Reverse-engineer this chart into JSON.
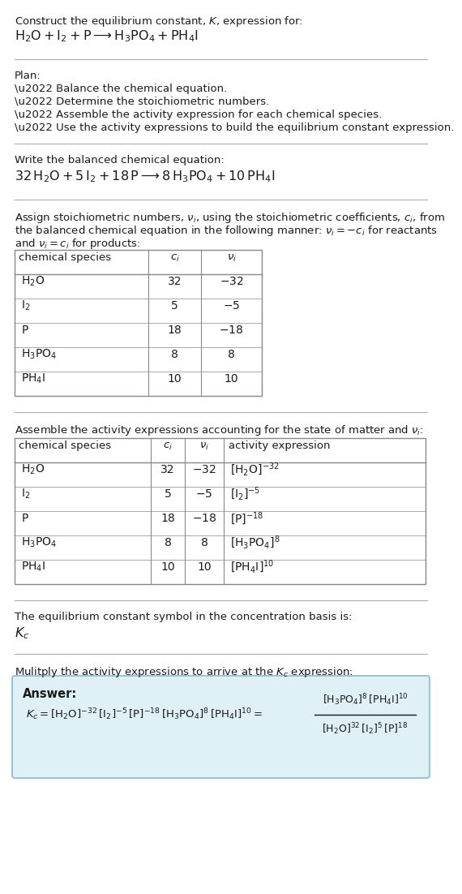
{
  "bg_color": "#ffffff",
  "text_color": "#1a1a1a",
  "table_border_color": "#888888",
  "answer_box_color": "#dff0f7",
  "answer_box_border": "#88bbcc",
  "line_color": "#aaaaaa",
  "sec1_line1": "Construct the equilibrium constant, $K$, expression for:",
  "sec1_line2_parts": [
    {
      "t": "$\\mathrm{H_2O + I_2 + P}$",
      "style": "normal"
    },
    {
      "t": " $\\longrightarrow$ ",
      "style": "normal"
    },
    {
      "t": "$\\mathrm{H_3PO_4 + PH_4I}$",
      "style": "normal"
    }
  ],
  "sec1_line2": "$\\mathrm{H_2O + I_2 + P} \\longrightarrow \\mathrm{H_3PO_4 + PH_4I}$",
  "plan_header": "Plan:",
  "plan_items": [
    "\\u2022 Balance the chemical equation.",
    "\\u2022 Determine the stoichiometric numbers.",
    "\\u2022 Assemble the activity expression for each chemical species.",
    "\\u2022 Use the activity expressions to build the equilibrium constant expression."
  ],
  "bal_header": "Write the balanced chemical equation:",
  "bal_eq": "$32\\,\\mathrm{H_2O} + 5\\,\\mathrm{I_2} + 18\\,\\mathrm{P} \\longrightarrow 8\\,\\mathrm{H_3PO_4} + 10\\,\\mathrm{PH_4I}$",
  "stoich_text_1": "Assign stoichiometric numbers, $\\nu_i$, using the stoichiometric coefficients, $c_i$, from",
  "stoich_text_2": "the balanced chemical equation in the following manner: $\\nu_i = -c_i$ for reactants",
  "stoich_text_3": "and $\\nu_i = c_i$ for products:",
  "t1_col0": "chemical species",
  "t1_col1": "$c_i$",
  "t1_col2": "$\\nu_i$",
  "t1_rows": [
    [
      "$\\mathrm{H_2O}$",
      "32",
      "$-32$"
    ],
    [
      "$\\mathrm{I_2}$",
      "5",
      "$-5$"
    ],
    [
      "$\\mathrm{P}$",
      "18",
      "$-18$"
    ],
    [
      "$\\mathrm{H_3PO_4}$",
      "8",
      "8"
    ],
    [
      "$\\mathrm{PH_4I}$",
      "10",
      "10"
    ]
  ],
  "act_header": "Assemble the activity expressions accounting for the state of matter and $\\nu_i$:",
  "t2_col0": "chemical species",
  "t2_col1": "$c_i$",
  "t2_col2": "$\\nu_i$",
  "t2_col3": "activity expression",
  "t2_rows": [
    [
      "$\\mathrm{H_2O}$",
      "32",
      "$-32$",
      "$[\\mathrm{H_2O}]^{-32}$"
    ],
    [
      "$\\mathrm{I_2}$",
      "5",
      "$-5$",
      "$[\\mathrm{I_2}]^{-5}$"
    ],
    [
      "$\\mathrm{P}$",
      "18",
      "$-18$",
      "$[\\mathrm{P}]^{-18}$"
    ],
    [
      "$\\mathrm{H_3PO_4}$",
      "8",
      "8",
      "$[\\mathrm{H_3PO_4}]^{8}$"
    ],
    [
      "$\\mathrm{PH_4I}$",
      "10",
      "10",
      "$[\\mathrm{PH_4I}]^{10}$"
    ]
  ],
  "kc_basis_text": "The equilibrium constant symbol in the concentration basis is:",
  "kc_symbol": "$K_c$",
  "mult_text": "Mulitply the activity expressions to arrive at the $K_c$ expression:",
  "answer_label": "Answer:",
  "kc_eq_lhs": "$K_c = [\\mathrm{H_2O}]^{-32}\\,[\\mathrm{I_2}]^{-5}\\,[\\mathrm{P}]^{-18}\\,[\\mathrm{H_3PO_4}]^{8}\\,[\\mathrm{PH_4I}]^{10} = $",
  "kc_eq_num": "$[\\mathrm{H_3PO_4}]^{8}\\,[\\mathrm{PH_4I}]^{10}$",
  "kc_eq_den": "$[\\mathrm{H_2O}]^{32}\\,[\\mathrm{I_2}]^{5}\\,[\\mathrm{P}]^{18}$"
}
